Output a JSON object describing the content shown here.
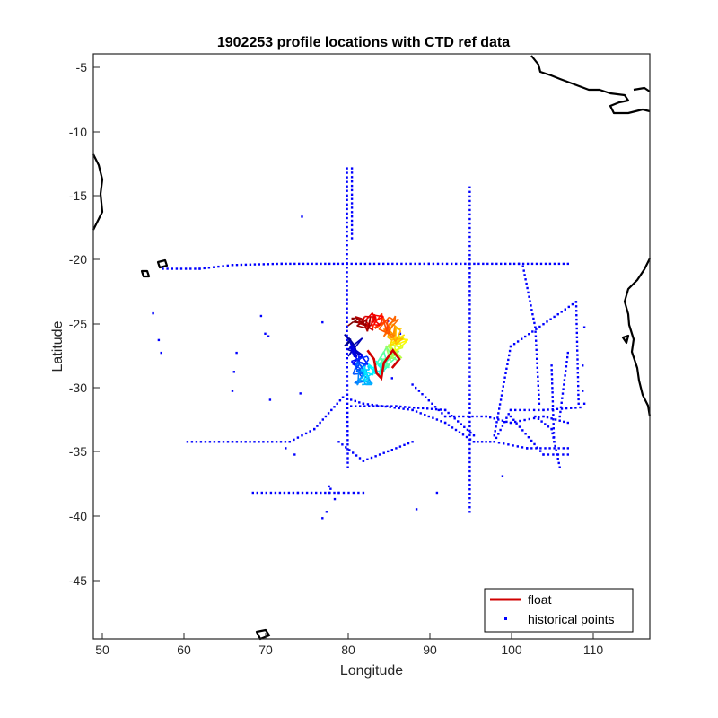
{
  "chart_data": {
    "type": "scatter",
    "title": "1902253 profile locations with CTD ref data",
    "xlabel": "Longitude",
    "ylabel": "Latitude",
    "xlim": [
      49,
      117
    ],
    "ylim": [
      -49.5,
      -3.5
    ],
    "x_ticks": [
      "50",
      "60",
      "70",
      "80",
      "90",
      "100",
      "110"
    ],
    "y_ticks": [
      "-5",
      "-10",
      "-15",
      "-20",
      "-25",
      "-30",
      "-35",
      "-40",
      "-45"
    ],
    "grid": false,
    "legend_position": "bottom-right",
    "legend": [
      {
        "label": "float",
        "color": "#d00000",
        "marker": "line"
      },
      {
        "label": "historical points",
        "color": "#0000ff",
        "marker": "dot"
      }
    ],
    "series": [
      {
        "name": "historical points",
        "type": "point-cluster",
        "color": "#0000ff",
        "segments": [
          [
            [
              57.5,
              -20.4
            ],
            [
              62,
              -20.4
            ],
            [
              66,
              -20.1
            ],
            [
              72,
              -20
            ],
            [
              80,
              -20
            ],
            [
              90,
              -20
            ],
            [
              95,
              -20
            ],
            [
              101,
              -20
            ],
            [
              107,
              -20
            ]
          ],
          [
            [
              80,
              -12.5
            ],
            [
              80,
              -26
            ],
            [
              80.1,
              -36
            ]
          ],
          [
            [
              80.6,
              -12.5
            ],
            [
              80.6,
              -18
            ]
          ],
          [
            [
              95,
              -14
            ],
            [
              95,
              -39.5
            ]
          ],
          [
            [
              60.5,
              -34
            ],
            [
              66,
              -34
            ],
            [
              73,
              -34
            ]
          ],
          [
            [
              73,
              -34
            ],
            [
              76,
              -33
            ],
            [
              79.5,
              -30.5
            ],
            [
              82,
              -31
            ],
            [
              88,
              -31.5
            ],
            [
              92,
              -32.5
            ],
            [
              95.5,
              -34
            ],
            [
              98,
              -34
            ]
          ],
          [
            [
              80.5,
              -31.2
            ],
            [
              86,
              -31.2
            ],
            [
              92,
              -31.5
            ],
            [
              95.5,
              -33.5
            ]
          ],
          [
            [
              79,
              -34
            ],
            [
              82,
              -35.5
            ],
            [
              88,
              -34
            ]
          ],
          [
            [
              98,
              -34
            ],
            [
              102,
              -34.5
            ],
            [
              107,
              -34.5
            ]
          ],
          [
            [
              82,
              -38
            ],
            [
              79,
              -38
            ],
            [
              74,
              -38
            ],
            [
              68.5,
              -38
            ]
          ],
          [
            [
              98,
              -34
            ],
            [
              100,
              -31.5
            ],
            [
              104,
              -31.5
            ],
            [
              108.5,
              -31.3
            ]
          ],
          [
            [
              101.5,
              -20.2
            ],
            [
              103,
              -25
            ],
            [
              103.5,
              -31
            ]
          ],
          [
            [
              98,
              -33.5
            ],
            [
              100,
              -26.5
            ],
            [
              108,
              -23
            ]
          ],
          [
            [
              108,
              -23
            ],
            [
              108.3,
              -31
            ]
          ],
          [
            [
              88,
              -29.5
            ],
            [
              92,
              -32
            ],
            [
              97,
              -32
            ]
          ],
          [
            [
              100,
              -32
            ],
            [
              104,
              -35
            ],
            [
              107,
              -35
            ]
          ],
          [
            [
              103,
              -32
            ],
            [
              105,
              -33
            ],
            [
              106,
              -36
            ]
          ],
          [
            [
              105,
              -28
            ],
            [
              105.3,
              -34
            ]
          ],
          [
            [
              107,
              -27
            ],
            [
              106,
              -32
            ]
          ],
          [
            [
              97,
              -32
            ],
            [
              100,
              -32.5
            ],
            [
              104,
              -32
            ],
            [
              107,
              -32.5
            ]
          ]
        ],
        "points": [
          [
            74.5,
            -16.3
          ],
          [
            56.3,
            -23.9
          ],
          [
            57,
            -26
          ],
          [
            57.3,
            -27
          ],
          [
            77,
            -24.6
          ],
          [
            66.5,
            -27
          ],
          [
            66.2,
            -28.5
          ],
          [
            66,
            -30
          ],
          [
            69.5,
            -24.1
          ],
          [
            70,
            -25.5
          ],
          [
            70.4,
            -25.7
          ],
          [
            70.6,
            -30.7
          ],
          [
            74.3,
            -30.2
          ],
          [
            72.5,
            -34.5
          ],
          [
            73.6,
            -35
          ],
          [
            77.8,
            -38
          ],
          [
            77.5,
            -39.5
          ],
          [
            77,
            -40
          ],
          [
            77.8,
            -37.5
          ],
          [
            78,
            -37.7
          ],
          [
            78.5,
            -38.5
          ],
          [
            88.5,
            -39.3
          ],
          [
            91,
            -38
          ],
          [
            99,
            -36.7
          ],
          [
            109,
            -25
          ],
          [
            108.8,
            -28
          ],
          [
            108.8,
            -30
          ],
          [
            85,
            -24.5
          ],
          [
            86.5,
            -25.5
          ],
          [
            85.5,
            -29
          ],
          [
            102,
            -34.5
          ],
          [
            109,
            -31
          ]
        ]
      },
      {
        "name": "float",
        "type": "trajectory",
        "color_scale": "jet",
        "approx_extent": {
          "longitude": [
            79,
            88
          ],
          "latitude": [
            -29.5,
            -23.8
          ]
        }
      }
    ]
  }
}
